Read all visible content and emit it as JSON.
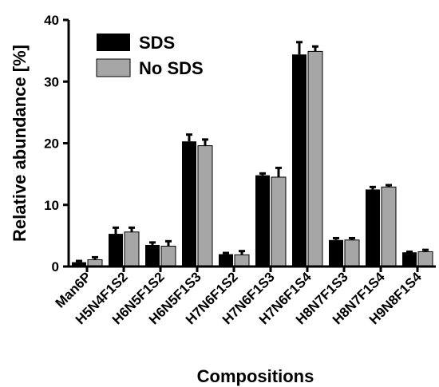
{
  "chart_data": {
    "type": "bar",
    "xlabel": "Compositions",
    "ylabel": "Relative abundance [%]",
    "ylim": [
      0,
      40
    ],
    "yticks": [
      0,
      10,
      20,
      30,
      40
    ],
    "grid": false,
    "legend_position": "top-left",
    "categories": [
      "Man6P",
      "H5N4F1S2",
      "H6N5F1S2",
      "H6N5F1S3",
      "H7N6F1S2",
      "H7N6F1S3",
      "H7N6F1S4",
      "H8N7F1S3",
      "H8N7F1S4",
      "H9N8F1S4"
    ],
    "series": [
      {
        "name": "SDS",
        "color": "#000000",
        "values": [
          0.7,
          5.3,
          3.5,
          20.3,
          2.0,
          14.8,
          34.4,
          4.3,
          12.5,
          2.3
        ],
        "errors": [
          0.2,
          1.0,
          0.4,
          1.1,
          0.2,
          0.3,
          2.0,
          0.3,
          0.4,
          0.1
        ]
      },
      {
        "name": "No SDS",
        "color": "#a6a6a6",
        "values": [
          1.1,
          5.6,
          3.3,
          19.6,
          1.9,
          14.5,
          34.9,
          4.3,
          12.9,
          2.4
        ],
        "errors": [
          0.4,
          0.7,
          0.8,
          1.0,
          0.6,
          1.5,
          0.8,
          0.3,
          0.3,
          0.3
        ]
      }
    ]
  }
}
